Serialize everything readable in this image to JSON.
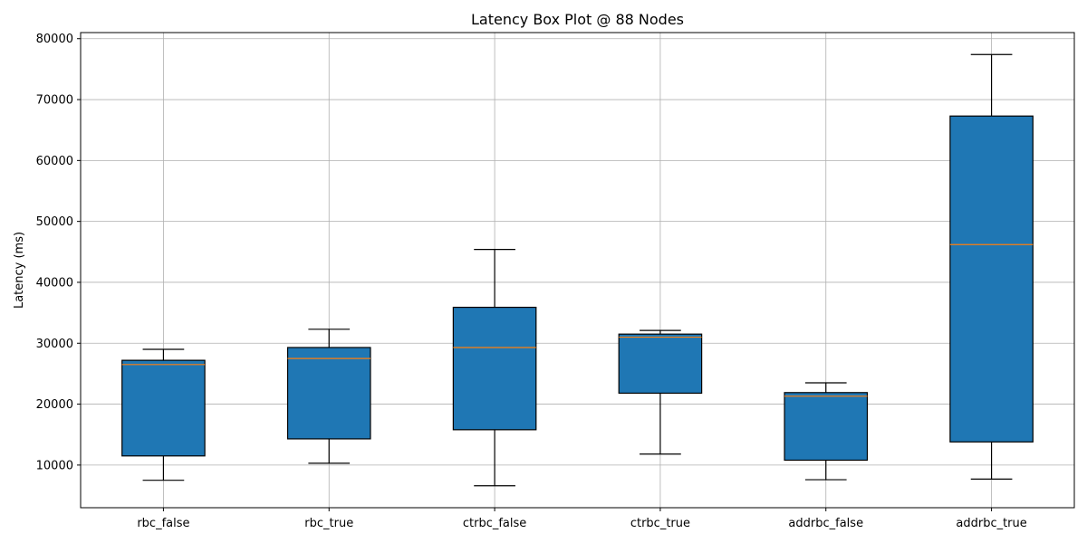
{
  "chart_data": {
    "type": "box",
    "title": "Latency Box Plot @ 88 Nodes",
    "xlabel": "",
    "ylabel": "Latency (ms)",
    "ylim": [
      3000,
      81000
    ],
    "yticks": [
      10000,
      20000,
      30000,
      40000,
      50000,
      60000,
      70000,
      80000
    ],
    "ytick_labels": [
      "10000",
      "20000",
      "30000",
      "40000",
      "50000",
      "60000",
      "70000",
      "80000"
    ],
    "grid": true,
    "categories": [
      "rbc_false",
      "rbc_true",
      "ctrbc_false",
      "ctrbc_true",
      "addrbc_false",
      "addrbc_true"
    ],
    "boxes": [
      {
        "name": "rbc_false",
        "whislo": 7500,
        "q1": 11500,
        "median": 26500,
        "q3": 27200,
        "whishi": 29000
      },
      {
        "name": "rbc_true",
        "whislo": 10300,
        "q1": 14300,
        "median": 27500,
        "q3": 29300,
        "whishi": 32300
      },
      {
        "name": "ctrbc_false",
        "whislo": 6600,
        "q1": 15800,
        "median": 29300,
        "q3": 35900,
        "whishi": 45400
      },
      {
        "name": "ctrbc_true",
        "whislo": 11800,
        "q1": 21800,
        "median": 31000,
        "q3": 31500,
        "whishi": 32100
      },
      {
        "name": "addrbc_false",
        "whislo": 7600,
        "q1": 10800,
        "median": 21300,
        "q3": 21900,
        "whishi": 23500
      },
      {
        "name": "addrbc_true",
        "whislo": 7700,
        "q1": 13800,
        "median": 46200,
        "q3": 67300,
        "whishi": 77400
      }
    ],
    "colors": {
      "box_fill": "#1f77b4",
      "median": "#ff7f0e",
      "edge": "#000000",
      "grid": "#b0b0b0"
    }
  }
}
